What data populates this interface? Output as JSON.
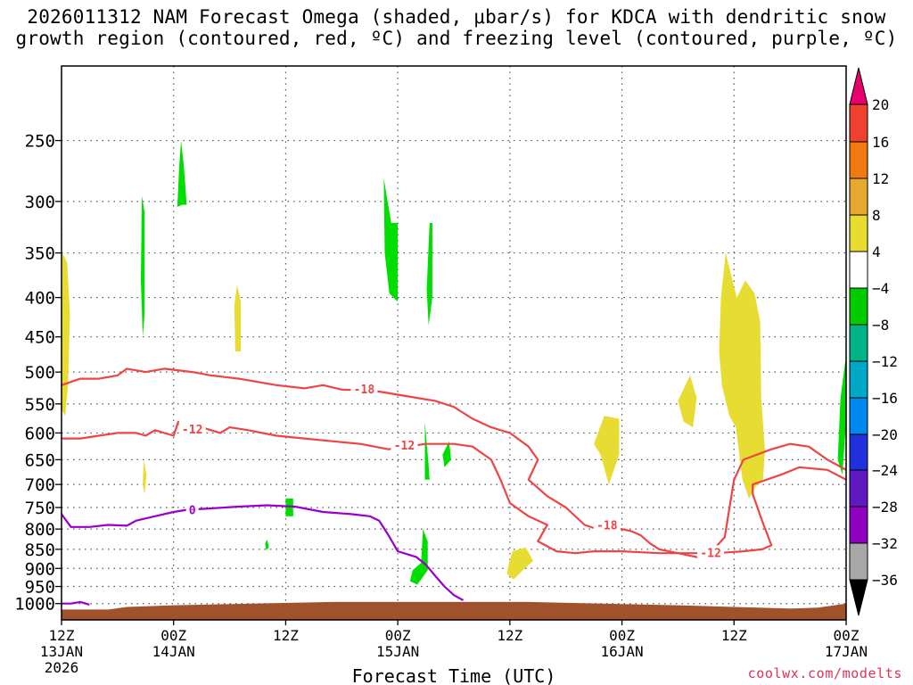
{
  "title_line1": "2026011312 NAM Forecast Omega (shaded, μbar/s) for KDCA with dendritic snow",
  "title_line2": "growth region (contoured, red, ºC) and freezing level (contoured, purple, ºC)",
  "credit": "coolwx.com/modelts",
  "chart_data": {
    "type": "time-height cross section",
    "xlabel": "Forecast Time (UTC)",
    "ylabel": "",
    "x_range_hours": [
      0,
      84
    ],
    "x_ticks": [
      {
        "hour": 0,
        "lines": [
          "12Z",
          "13JAN",
          "2026"
        ]
      },
      {
        "hour": 12,
        "lines": [
          "00Z",
          "14JAN"
        ]
      },
      {
        "hour": 24,
        "lines": [
          "12Z"
        ]
      },
      {
        "hour": 36,
        "lines": [
          "00Z",
          "15JAN"
        ]
      },
      {
        "hour": 48,
        "lines": [
          "12Z"
        ]
      },
      {
        "hour": 60,
        "lines": [
          "00Z",
          "16JAN"
        ]
      },
      {
        "hour": 72,
        "lines": [
          "12Z"
        ]
      },
      {
        "hour": 84,
        "lines": [
          "00Z",
          "17JAN"
        ]
      }
    ],
    "y_scale": "log pressure (hPa), inverted",
    "y_range": [
      1050,
      200
    ],
    "y_ticks": [
      250,
      300,
      350,
      400,
      450,
      500,
      550,
      600,
      650,
      700,
      750,
      800,
      850,
      900,
      950,
      1000
    ],
    "grid": "dotted",
    "colorbar": {
      "labels": [
        "20",
        "16",
        "12",
        "8",
        "4",
        "−4",
        "−8",
        "−12",
        "−16",
        "−20",
        "−24",
        "−28",
        "−32",
        "−36"
      ],
      "colors": [
        "#e8006e",
        "#f04030",
        "#f07a10",
        "#e8a830",
        "#e8dc30",
        "#ffffff",
        "#00cc00",
        "#00b488",
        "#00a8c8",
        "#0088ee",
        "#2030dc",
        "#6018c0",
        "#9000c0",
        "#a8a8a8",
        "#000000"
      ]
    },
    "omega_regions": [
      {
        "level": "-4 to -8",
        "color": "#00dd00",
        "points": [
          [
            12.4,
            305
          ],
          [
            12.6,
            270
          ],
          [
            12.8,
            250
          ],
          [
            13.1,
            270
          ],
          [
            13.4,
            303
          ],
          [
            12.9,
            303
          ]
        ]
      },
      {
        "level": "-4 to -8",
        "color": "#00dd00",
        "points": [
          [
            8.6,
            295
          ],
          [
            8.9,
            310
          ],
          [
            8.9,
            420
          ],
          [
            8.7,
            450
          ],
          [
            8.5,
            380
          ]
        ]
      },
      {
        "level": "-4 to -8",
        "color": "#00dd00",
        "points": [
          [
            34.5,
            280
          ],
          [
            35.3,
            320
          ],
          [
            36.0,
            320
          ],
          [
            36.0,
            405
          ],
          [
            35.1,
            395
          ],
          [
            34.6,
            350
          ]
        ]
      },
      {
        "level": "-4 to -8",
        "color": "#00dd00",
        "points": [
          [
            39.4,
            320
          ],
          [
            39.7,
            320
          ],
          [
            39.7,
            400
          ],
          [
            39.3,
            435
          ],
          [
            39.1,
            390
          ]
        ]
      },
      {
        "level": "-4 to -8",
        "color": "#00dd00",
        "points": [
          [
            84.0,
            475
          ],
          [
            84.3,
            480
          ],
          [
            84.7,
            520
          ],
          [
            84.0,
            580
          ],
          [
            83.6,
            680
          ],
          [
            83.1,
            650
          ],
          [
            83.4,
            540
          ]
        ]
      },
      {
        "level": "-4 to -8",
        "color": "#00dd00",
        "points": [
          [
            38.9,
            580
          ],
          [
            39.3,
            660
          ],
          [
            39.4,
            690
          ],
          [
            38.9,
            690
          ],
          [
            38.9,
            620
          ]
        ]
      },
      {
        "level": "-4 to -8",
        "color": "#00dd00",
        "points": [
          [
            40.8,
            640
          ],
          [
            41.5,
            615
          ],
          [
            41.7,
            650
          ],
          [
            41.0,
            665
          ]
        ]
      },
      {
        "level": "-4 to -8",
        "color": "#00dd00",
        "points": [
          [
            24.0,
            730
          ],
          [
            24.8,
            730
          ],
          [
            24.8,
            770
          ],
          [
            24.0,
            770
          ]
        ]
      },
      {
        "level": "-4 to -8",
        "color": "#00dd00",
        "points": [
          [
            21.8,
            835
          ],
          [
            22.0,
            825
          ],
          [
            22.2,
            845
          ],
          [
            21.9,
            852
          ]
        ]
      },
      {
        "level": "-4 to -8",
        "color": "#00dd00",
        "points": [
          [
            38.7,
            800
          ],
          [
            39.2,
            830
          ],
          [
            39.2,
            905
          ],
          [
            38.1,
            945
          ],
          [
            37.3,
            935
          ],
          [
            37.6,
            905
          ],
          [
            38.5,
            885
          ]
        ]
      },
      {
        "level": "4 to 8",
        "color": "#e6dc32",
        "points": [
          [
            0.1,
            350
          ],
          [
            0.6,
            360
          ],
          [
            0.9,
            420
          ],
          [
            0.7,
            520
          ],
          [
            0.4,
            570
          ],
          [
            0.0,
            560
          ]
        ]
      },
      {
        "level": "4 to 8",
        "color": "#e6dc32",
        "points": [
          [
            18.8,
            385
          ],
          [
            19.2,
            405
          ],
          [
            19.2,
            470
          ],
          [
            18.6,
            470
          ],
          [
            18.5,
            410
          ]
        ]
      },
      {
        "level": "4 to 8",
        "color": "#e6dc32",
        "points": [
          [
            8.8,
            650
          ],
          [
            9.1,
            680
          ],
          [
            8.9,
            720
          ],
          [
            8.7,
            700
          ]
        ]
      },
      {
        "level": "4 to 8",
        "color": "#e6dc32",
        "points": [
          [
            67.3,
            505
          ],
          [
            68.0,
            540
          ],
          [
            67.6,
            590
          ],
          [
            66.6,
            580
          ],
          [
            66.0,
            545
          ]
        ]
      },
      {
        "level": "4 to 8",
        "color": "#e6dc32",
        "points": [
          [
            58.1,
            570
          ],
          [
            59.7,
            575
          ],
          [
            59.7,
            640
          ],
          [
            58.6,
            700
          ],
          [
            57.7,
            640
          ],
          [
            57.0,
            620
          ]
        ]
      },
      {
        "level": "4 to 8",
        "color": "#e6dc32",
        "points": [
          [
            71.1,
            350
          ],
          [
            72.3,
            400
          ],
          [
            73.2,
            380
          ],
          [
            74.2,
            395
          ],
          [
            74.8,
            430
          ],
          [
            74.9,
            540
          ],
          [
            75.3,
            630
          ],
          [
            75.1,
            690
          ],
          [
            74.3,
            705
          ],
          [
            73.6,
            730
          ],
          [
            72.9,
            690
          ],
          [
            72.2,
            590
          ],
          [
            71.5,
            570
          ],
          [
            70.7,
            520
          ],
          [
            70.4,
            470
          ],
          [
            70.6,
            400
          ]
        ]
      },
      {
        "level": "4 to 8",
        "color": "#e6dc32",
        "points": [
          [
            48.3,
            855
          ],
          [
            49.7,
            845
          ],
          [
            50.5,
            880
          ],
          [
            49.8,
            895
          ],
          [
            48.4,
            930
          ],
          [
            47.7,
            915
          ],
          [
            47.9,
            885
          ]
        ]
      }
    ],
    "snow_growth_isotherms": [
      {
        "label": "-18",
        "color": "#ef4444",
        "points": [
          [
            0,
            520
          ],
          [
            2,
            510
          ],
          [
            4,
            510
          ],
          [
            6,
            505
          ],
          [
            7,
            495
          ],
          [
            9,
            500
          ],
          [
            11,
            495
          ],
          [
            14,
            500
          ],
          [
            16,
            505
          ],
          [
            19,
            510
          ],
          [
            23,
            520
          ],
          [
            26,
            525
          ],
          [
            28,
            520
          ],
          [
            30,
            527
          ],
          [
            32,
            528
          ],
          [
            34,
            530
          ],
          [
            36,
            535
          ],
          [
            38,
            540
          ],
          [
            40,
            545
          ],
          [
            42,
            555
          ],
          [
            44,
            575
          ],
          [
            46,
            590
          ],
          [
            48,
            600
          ],
          [
            50,
            625
          ],
          [
            51,
            650
          ],
          [
            50,
            690
          ],
          [
            52,
            725
          ],
          [
            54,
            750
          ],
          [
            56,
            790
          ],
          [
            58,
            805
          ],
          [
            60,
            800
          ],
          [
            61,
            805
          ],
          [
            62,
            815
          ],
          [
            63,
            835
          ],
          [
            64,
            850
          ],
          [
            66,
            860
          ],
          [
            68,
            870
          ],
          [
            69,
            870
          ],
          [
            70,
            845
          ],
          [
            71,
            820
          ],
          [
            72,
            690
          ],
          [
            73,
            650
          ],
          [
            76,
            630
          ],
          [
            78,
            620
          ],
          [
            80,
            625
          ],
          [
            82,
            650
          ],
          [
            84,
            670
          ]
        ]
      },
      {
        "label": "-12",
        "color": "#ef4444",
        "points": [
          [
            0,
            610
          ],
          [
            2,
            610
          ],
          [
            4,
            605
          ],
          [
            6,
            600
          ],
          [
            8,
            600
          ],
          [
            9,
            605
          ],
          [
            10,
            595
          ],
          [
            12,
            605
          ],
          [
            12.5,
            580
          ],
          [
            13,
            600
          ],
          [
            15,
            590
          ],
          [
            17,
            600
          ],
          [
            18,
            590
          ],
          [
            20,
            595
          ],
          [
            23,
            605
          ],
          [
            26,
            610
          ],
          [
            29,
            615
          ],
          [
            32,
            620
          ],
          [
            35,
            630
          ],
          [
            37,
            625
          ],
          [
            39,
            620
          ],
          [
            42,
            620
          ],
          [
            44,
            625
          ],
          [
            46,
            650
          ],
          [
            47,
            690
          ],
          [
            48,
            740
          ],
          [
            50,
            770
          ],
          [
            52,
            790
          ],
          [
            51,
            830
          ],
          [
            53,
            855
          ],
          [
            55,
            860
          ],
          [
            57,
            855
          ],
          [
            60,
            855
          ],
          [
            64,
            860
          ],
          [
            68,
            860
          ],
          [
            70,
            860
          ],
          [
            73,
            855
          ],
          [
            75,
            850
          ],
          [
            76,
            840
          ],
          [
            75,
            780
          ],
          [
            74,
            720
          ],
          [
            74,
            700
          ],
          [
            77,
            680
          ],
          [
            79,
            665
          ],
          [
            82,
            670
          ],
          [
            84,
            690
          ]
        ]
      }
    ],
    "isotherm_labels": [
      {
        "text": "-18",
        "hour": 32.4,
        "p": 526
      },
      {
        "text": "-12",
        "hour": 14.0,
        "p": 593
      },
      {
        "text": "-12",
        "hour": 36.7,
        "p": 622
      },
      {
        "text": "-18",
        "hour": 58.4,
        "p": 790
      },
      {
        "text": "-12",
        "hour": 69.5,
        "p": 858
      }
    ],
    "freezing_level": {
      "label": "0",
      "color": "#9900cc",
      "points": [
        [
          0,
          765
        ],
        [
          1,
          795
        ],
        [
          3,
          795
        ],
        [
          5,
          790
        ],
        [
          7,
          792
        ],
        [
          8,
          780
        ],
        [
          10,
          770
        ],
        [
          12,
          760
        ],
        [
          13.5,
          755
        ],
        [
          16,
          752
        ],
        [
          19,
          748
        ],
        [
          22,
          745
        ],
        [
          25,
          748
        ],
        [
          28,
          760
        ],
        [
          31,
          765
        ],
        [
          33,
          770
        ],
        [
          34,
          780
        ],
        [
          35,
          815
        ],
        [
          36,
          855
        ],
        [
          38,
          870
        ],
        [
          39,
          890
        ],
        [
          40,
          920
        ],
        [
          41,
          950
        ],
        [
          42,
          975
        ],
        [
          43,
          990
        ]
      ]
    },
    "freezing_label": {
      "text": "0",
      "hour": 14.0,
      "p": 755
    },
    "freezing_level_fragment": {
      "points": [
        [
          0,
          1000
        ],
        [
          1,
          1000
        ],
        [
          2,
          995
        ],
        [
          3,
          1003
        ]
      ]
    },
    "terrain": {
      "color": "#a0522d",
      "points": [
        [
          0,
          1018
        ],
        [
          5,
          1018
        ],
        [
          7,
          1010
        ],
        [
          12,
          1005
        ],
        [
          17,
          1002
        ],
        [
          29,
          995
        ],
        [
          50,
          995
        ],
        [
          66,
          1005
        ],
        [
          72,
          1010
        ],
        [
          78,
          1015
        ],
        [
          81,
          1012
        ],
        [
          84,
          1000
        ]
      ]
    }
  }
}
